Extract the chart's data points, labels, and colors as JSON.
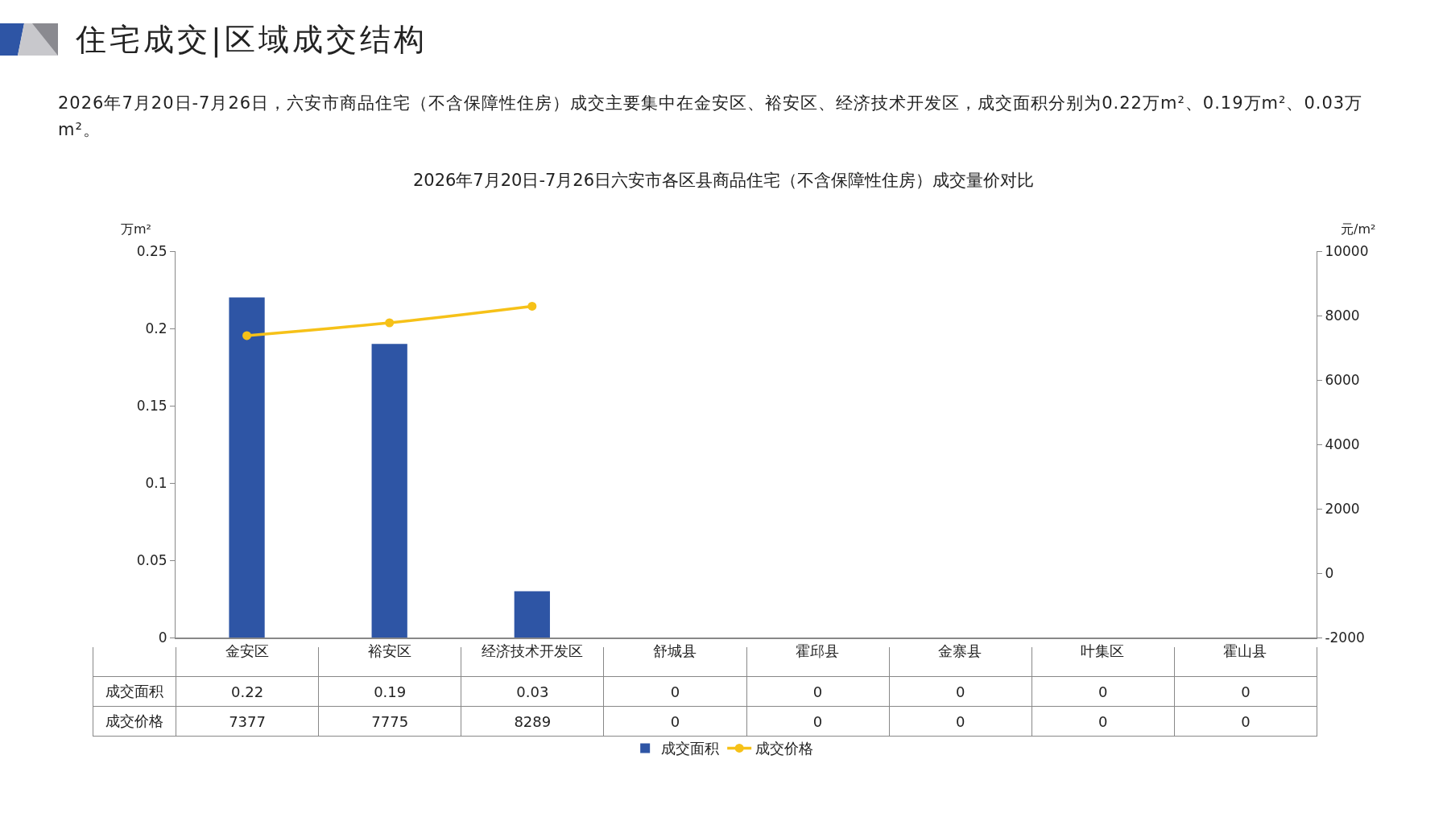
{
  "chart_data": {
    "type": "bar",
    "title": "2026年7月20日-7月26日六安市各区县商品住宅（不含保障性住房）成交量价对比",
    "annotations": [
      "住宅成交|区域成交结构",
      "2026年7月20日-7月26日，六安市商品住宅（不含保障性住房）成交主要集中在金安区、裕安区、经济技术开发区，成交面积分别为0.22万m²、0.19万m²、0.03万m²。"
    ],
    "ylabel": "万m²",
    "y2label": "元/m²",
    "categories": [
      "金安区",
      "裕安区",
      "经济技术开发区",
      "舒城县",
      "霍邱县",
      "金寨县",
      "叶集区",
      "霍山县"
    ],
    "series": [
      {
        "name": "成交面积",
        "color": "#2e55a5",
        "values": [
          0.22,
          0.19,
          0.03,
          0,
          0,
          0,
          0,
          0
        ],
        "value_labels": [
          "0.22",
          "0.19",
          "0.03",
          "0",
          "0",
          "0",
          "0",
          "0"
        ]
      },
      {
        "name": "成交价格",
        "type": "line",
        "axis": "y2",
        "color": "#f6c118",
        "values": [
          7377,
          7775,
          8289,
          null,
          null,
          null,
          null,
          null
        ],
        "value_labels": [
          "7377",
          "7775",
          "8289",
          "0",
          "0",
          "0",
          "0",
          "0"
        ]
      }
    ],
    "ylim": [
      0,
      0.25
    ],
    "yticks": [
      0,
      0.05,
      0.1,
      0.15,
      0.2,
      0.25
    ],
    "y2lim": [
      -2000,
      10000
    ],
    "y2ticks": [
      -2000,
      0,
      2000,
      4000,
      6000,
      8000,
      10000
    ],
    "grid": false,
    "legend": "bottom",
    "marker": "circle",
    "line_style": "solid"
  }
}
